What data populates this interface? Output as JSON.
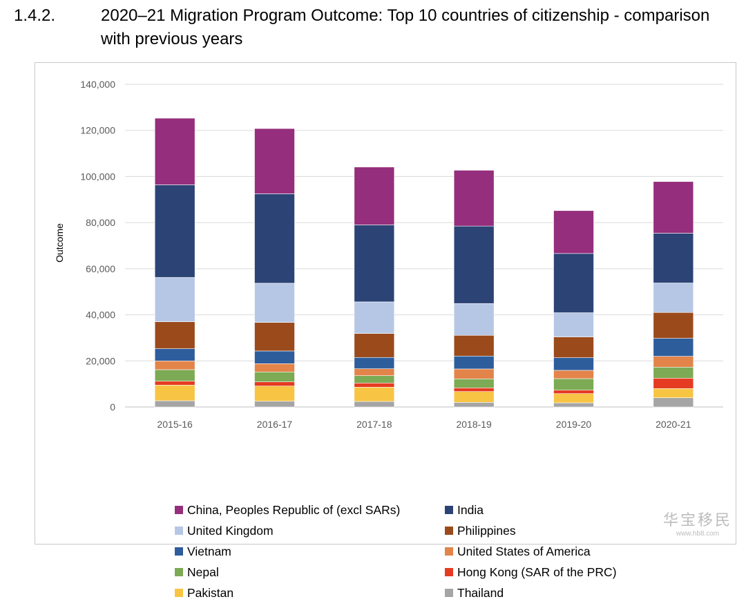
{
  "heading": {
    "number": "1.4.2.",
    "title": "2020–21 Migration Program Outcome: Top 10 countries of citizenship - comparison with previous years"
  },
  "watermark": {
    "text": "华宝移民",
    "subtext": "www.hb8.com"
  },
  "chart_data": {
    "type": "bar",
    "stacked": true,
    "ylabel": "Outcome",
    "xlabel": "",
    "ylim": [
      0,
      140000
    ],
    "yticks": [
      0,
      20000,
      40000,
      60000,
      80000,
      100000,
      120000,
      140000
    ],
    "ytick_labels": [
      "0",
      "20,000",
      "40,000",
      "60,000",
      "80,000",
      "100,000",
      "120,000",
      "140,000"
    ],
    "grid": true,
    "legend_position": "bottom",
    "categories": [
      "2015-16",
      "2016-17",
      "2017-18",
      "2018-19",
      "2019-20",
      "2020-21"
    ],
    "series": [
      {
        "name": "Thailand",
        "color": "#a5a5a5",
        "values": [
          2700,
          2500,
          2400,
          2000,
          1800,
          4000
        ]
      },
      {
        "name": "Pakistan",
        "color": "#f8c443",
        "values": [
          6800,
          6600,
          6200,
          4700,
          4000,
          4000
        ]
      },
      {
        "name": "Hong Kong (SAR of the PRC)",
        "color": "#e53b22",
        "values": [
          1700,
          1800,
          1800,
          1600,
          1500,
          4500
        ]
      },
      {
        "name": "Nepal",
        "color": "#7daa54",
        "values": [
          5000,
          4300,
          3200,
          3900,
          5000,
          4800
        ]
      },
      {
        "name": "United States of America",
        "color": "#e3844a",
        "values": [
          3800,
          3600,
          3000,
          4300,
          3600,
          4700
        ]
      },
      {
        "name": "Vietnam",
        "color": "#2e5d9c",
        "values": [
          5300,
          5500,
          4900,
          5600,
          5500,
          7800
        ]
      },
      {
        "name": "Philippines",
        "color": "#9b4a1c",
        "values": [
          11700,
          12400,
          10400,
          9000,
          9000,
          11200
        ]
      },
      {
        "name": "United Kingdom",
        "color": "#b6c7e6",
        "values": [
          19200,
          17000,
          13700,
          13800,
          10500,
          12800
        ]
      },
      {
        "name": "India",
        "color": "#2c4375",
        "values": [
          40200,
          38800,
          33400,
          33600,
          25700,
          21600
        ]
      },
      {
        "name": "China, Peoples Republic of (excl SARs)",
        "color": "#952e7c",
        "values": [
          28900,
          28300,
          25100,
          24200,
          18600,
          22400
        ]
      }
    ],
    "legend_order": [
      "China, Peoples Republic of (excl SARs)",
      "India",
      "United Kingdom",
      "Philippines",
      "Vietnam",
      "United States of America",
      "Nepal",
      "Hong Kong (SAR of the PRC)",
      "Pakistan",
      "Thailand"
    ]
  }
}
